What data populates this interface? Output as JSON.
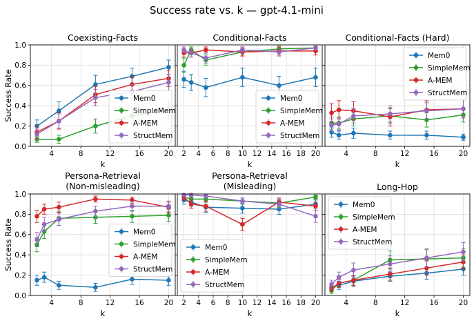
{
  "figure_title": "Success rate vs. k — gpt-4.1-mini",
  "colors": {
    "Mem0": "#1f77b4",
    "SimpleMem": "#2ca02c",
    "A-MEM": "#d62728",
    "StructMem": "#9467bd"
  },
  "chart_data": [
    {
      "type": "line",
      "title": "Coexisting-Facts",
      "xlabel": "k",
      "ylabel": "Success Rate",
      "xlim": [
        1.1,
        20.9
      ],
      "ylim": [
        0,
        1
      ],
      "xticks": [
        4,
        8,
        12,
        16,
        20
      ],
      "yticks": [
        0.0,
        0.2,
        0.4,
        0.6,
        0.8,
        1.0
      ],
      "grid": true,
      "legend": "bottom-right",
      "x": [
        2,
        3,
        5,
        10,
        15,
        20
      ],
      "series": [
        {
          "name": "Mem0",
          "values": [
            0.2,
            0.35,
            0.61,
            0.69,
            0.78
          ],
          "x": [
            2,
            5,
            10,
            15,
            20
          ],
          "errors": [
            0.06,
            0.09,
            0.09,
            0.08,
            0.07
          ]
        },
        {
          "name": "SimpleMem",
          "values": [
            0.07,
            0.07,
            0.2,
            0.3,
            0.36
          ],
          "x": [
            2,
            5,
            10,
            15,
            20
          ],
          "errors": [
            0.03,
            0.04,
            0.07,
            0.08,
            0.09
          ]
        },
        {
          "name": "A-MEM",
          "values": [
            0.14,
            0.25,
            0.51,
            0.61,
            0.67
          ],
          "x": [
            2,
            5,
            10,
            15,
            20
          ],
          "errors": [
            0.06,
            0.08,
            0.08,
            0.08,
            0.08
          ]
        },
        {
          "name": "StructMem",
          "values": [
            0.12,
            0.25,
            0.48,
            0.54,
            0.63
          ],
          "x": [
            2,
            5,
            10,
            15,
            20
          ],
          "errors": [
            0.05,
            0.07,
            0.08,
            0.07,
            0.08
          ]
        }
      ]
    },
    {
      "type": "line",
      "title": "Conditional-Facts",
      "xlabel": "k",
      "ylabel": "",
      "xlim": [
        1.1,
        20.9
      ],
      "ylim": [
        0,
        1
      ],
      "xticks": [
        2,
        4,
        6,
        8,
        10,
        12,
        14,
        16,
        18,
        20
      ],
      "yticks": [
        0.0,
        0.2,
        0.4,
        0.6,
        0.8,
        1.0
      ],
      "grid": true,
      "legend": "bottom-right",
      "series": [
        {
          "name": "Mem0",
          "x": [
            2,
            3,
            5,
            10,
            15,
            20
          ],
          "values": [
            0.66,
            0.63,
            0.58,
            0.68,
            0.6,
            0.68
          ],
          "errors": [
            0.08,
            0.08,
            0.09,
            0.09,
            0.09,
            0.09
          ]
        },
        {
          "name": "SimpleMem",
          "x": [
            2,
            3,
            5,
            10,
            15,
            20
          ],
          "values": [
            0.8,
            0.95,
            0.85,
            0.93,
            0.96,
            0.97
          ],
          "errors": [
            0.07,
            0.03,
            0.05,
            0.03,
            0.03,
            0.02
          ]
        },
        {
          "name": "A-MEM",
          "x": [
            2,
            3,
            5,
            10,
            15,
            20
          ],
          "values": [
            0.92,
            0.92,
            0.95,
            0.93,
            0.94,
            0.94
          ],
          "errors": [
            0.04,
            0.04,
            0.03,
            0.04,
            0.04,
            0.04
          ]
        },
        {
          "name": "StructMem",
          "x": [
            2,
            3,
            5,
            10,
            15,
            20
          ],
          "values": [
            0.95,
            0.92,
            0.87,
            0.95,
            0.93,
            0.97
          ],
          "errors": [
            0.03,
            0.04,
            0.05,
            0.03,
            0.04,
            0.02
          ]
        }
      ]
    },
    {
      "type": "line",
      "title": "Conditional-Facts (Hard)",
      "xlabel": "k",
      "ylabel": "",
      "xlim": [
        1.1,
        20.9
      ],
      "ylim": [
        0,
        1
      ],
      "xticks": [
        4,
        8,
        12,
        16,
        20
      ],
      "yticks": [
        0.0,
        0.2,
        0.4,
        0.6,
        0.8,
        1.0
      ],
      "grid": true,
      "legend": "top-right",
      "series": [
        {
          "name": "Mem0",
          "x": [
            2,
            3,
            5,
            10,
            15,
            20
          ],
          "values": [
            0.14,
            0.11,
            0.13,
            0.11,
            0.11,
            0.09
          ],
          "errors": [
            0.05,
            0.04,
            0.05,
            0.04,
            0.04,
            0.03
          ]
        },
        {
          "name": "SimpleMem",
          "x": [
            2,
            3,
            5,
            10,
            15,
            20
          ],
          "values": [
            0.23,
            0.23,
            0.27,
            0.3,
            0.26,
            0.31
          ],
          "errors": [
            0.06,
            0.06,
            0.07,
            0.07,
            0.07,
            0.07
          ]
        },
        {
          "name": "A-MEM",
          "x": [
            2,
            3,
            5,
            10,
            15,
            20
          ],
          "values": [
            0.33,
            0.36,
            0.35,
            0.29,
            0.36,
            0.37
          ],
          "errors": [
            0.09,
            0.09,
            0.09,
            0.09,
            0.09,
            0.09
          ]
        },
        {
          "name": "StructMem",
          "x": [
            2,
            3,
            5,
            10,
            15,
            20
          ],
          "values": [
            0.21,
            0.22,
            0.3,
            0.32,
            0.35,
            0.37
          ],
          "errors": [
            0.06,
            0.06,
            0.07,
            0.08,
            0.08,
            0.09
          ]
        }
      ]
    },
    {
      "type": "line",
      "title": "Persona-Retrieval\n(Non-misleading)",
      "xlabel": "k",
      "ylabel": "Success Rate",
      "xlim": [
        1.1,
        20.9
      ],
      "ylim": [
        0,
        1
      ],
      "xticks": [
        4,
        8,
        12,
        16,
        20
      ],
      "yticks": [
        0.0,
        0.2,
        0.4,
        0.6,
        0.8,
        1.0
      ],
      "grid": true,
      "legend": "center-right",
      "series": [
        {
          "name": "Mem0",
          "x": [
            2,
            3,
            5,
            10,
            15,
            20
          ],
          "values": [
            0.15,
            0.18,
            0.1,
            0.08,
            0.16,
            0.15
          ],
          "errors": [
            0.05,
            0.05,
            0.04,
            0.04,
            0.05,
            0.05
          ]
        },
        {
          "name": "SimpleMem",
          "x": [
            2,
            3,
            5,
            10,
            15,
            20
          ],
          "values": [
            0.5,
            0.63,
            0.76,
            0.77,
            0.78,
            0.79
          ],
          "errors": [
            0.07,
            0.07,
            0.07,
            0.06,
            0.06,
            0.06
          ]
        },
        {
          "name": "A-MEM",
          "x": [
            2,
            3,
            5,
            10,
            15,
            20
          ],
          "values": [
            0.78,
            0.85,
            0.87,
            0.95,
            0.94,
            0.87
          ],
          "errors": [
            0.06,
            0.05,
            0.05,
            0.03,
            0.03,
            0.05
          ]
        },
        {
          "name": "StructMem",
          "x": [
            2,
            3,
            5,
            10,
            15,
            20
          ],
          "values": [
            0.55,
            0.7,
            0.75,
            0.83,
            0.88,
            0.88
          ],
          "errors": [
            0.07,
            0.07,
            0.06,
            0.05,
            0.05,
            0.05
          ]
        }
      ]
    },
    {
      "type": "line",
      "title": "Persona-Retrieval\n(Misleading)",
      "xlabel": "k",
      "ylabel": "",
      "xlim": [
        1.1,
        20.9
      ],
      "ylim": [
        0,
        1
      ],
      "xticks": [
        2,
        4,
        6,
        8,
        10,
        12,
        14,
        16,
        18,
        20
      ],
      "yticks": [
        0.0,
        0.2,
        0.4,
        0.6,
        0.8,
        1.0
      ],
      "grid": true,
      "legend": "bottom-left",
      "series": [
        {
          "name": "Mem0",
          "x": [
            2,
            3,
            5,
            10,
            15,
            20
          ],
          "values": [
            0.94,
            0.92,
            0.87,
            0.86,
            0.85,
            0.9
          ],
          "errors": [
            0.04,
            0.04,
            0.05,
            0.05,
            0.05,
            0.04
          ]
        },
        {
          "name": "SimpleMem",
          "x": [
            2,
            3,
            5,
            10,
            15,
            20
          ],
          "values": [
            0.97,
            0.95,
            0.95,
            0.93,
            0.91,
            0.97
          ],
          "errors": [
            0.03,
            0.03,
            0.03,
            0.03,
            0.04,
            0.02
          ]
        },
        {
          "name": "A-MEM",
          "x": [
            2,
            3,
            5,
            10,
            15,
            20
          ],
          "values": [
            0.97,
            0.9,
            0.88,
            0.7,
            0.92,
            0.88
          ],
          "errors": [
            0.03,
            0.04,
            0.05,
            0.06,
            0.04,
            0.04
          ]
        },
        {
          "name": "StructMem",
          "x": [
            2,
            3,
            5,
            10,
            15,
            20
          ],
          "values": [
            0.99,
            0.99,
            0.98,
            0.93,
            0.9,
            0.78
          ],
          "errors": [
            0.02,
            0.02,
            0.02,
            0.03,
            0.04,
            0.06
          ]
        }
      ]
    },
    {
      "type": "line",
      "title": "Long-Hop",
      "xlabel": "k",
      "ylabel": "",
      "xlim": [
        1.1,
        20.9
      ],
      "ylim": [
        0,
        1
      ],
      "xticks": [
        4,
        8,
        12,
        16,
        20
      ],
      "yticks": [
        0.0,
        0.2,
        0.4,
        0.6,
        0.8,
        1.0
      ],
      "grid": true,
      "legend": "top-left",
      "series": [
        {
          "name": "Mem0",
          "x": [
            2,
            3,
            5,
            10,
            15,
            20
          ],
          "values": [
            0.08,
            0.1,
            0.14,
            0.19,
            0.22,
            0.26
          ],
          "errors": [
            0.03,
            0.04,
            0.05,
            0.05,
            0.06,
            0.06
          ]
        },
        {
          "name": "SimpleMem",
          "x": [
            2,
            3,
            5,
            10,
            15,
            20
          ],
          "values": [
            0.05,
            0.12,
            0.15,
            0.35,
            0.36,
            0.37
          ],
          "errors": [
            0.03,
            0.04,
            0.05,
            0.09,
            0.09,
            0.09
          ]
        },
        {
          "name": "A-MEM",
          "x": [
            2,
            3,
            5,
            10,
            15,
            20
          ],
          "values": [
            0.07,
            0.12,
            0.15,
            0.21,
            0.27,
            0.33
          ],
          "errors": [
            0.03,
            0.04,
            0.05,
            0.06,
            0.07,
            0.07
          ]
        },
        {
          "name": "StructMem",
          "x": [
            2,
            3,
            5,
            10,
            15,
            20
          ],
          "values": [
            0.11,
            0.18,
            0.25,
            0.31,
            0.37,
            0.43
          ],
          "errors": [
            0.04,
            0.05,
            0.07,
            0.08,
            0.09,
            0.09
          ]
        }
      ]
    }
  ]
}
